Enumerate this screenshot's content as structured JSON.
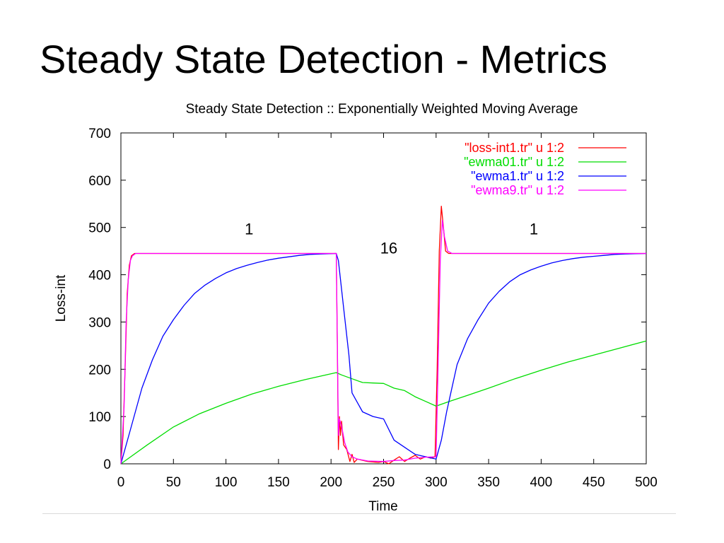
{
  "slide": {
    "title": "Steady State Detection - Metrics"
  },
  "chart_data": {
    "type": "line",
    "title": "Steady State Detection :: Exponentially Weighted Moving Average",
    "xlabel": "Time",
    "ylabel": "Loss-int",
    "xlim": [
      0,
      500
    ],
    "ylim": [
      0,
      700
    ],
    "xticks": [
      0,
      50,
      100,
      150,
      200,
      250,
      300,
      350,
      400,
      450,
      500
    ],
    "yticks": [
      0,
      100,
      200,
      300,
      400,
      500,
      600,
      700
    ],
    "grid": false,
    "legend_position": "top-right",
    "series": [
      {
        "name": "\"loss-int1.tr\" u 1:2",
        "color": "#ff0000",
        "points": [
          [
            0,
            0
          ],
          [
            2,
            60
          ],
          [
            4,
            200
          ],
          [
            6,
            360
          ],
          [
            8,
            420
          ],
          [
            10,
            440
          ],
          [
            13,
            445
          ],
          [
            205,
            445
          ],
          [
            206,
            250
          ],
          [
            207,
            30
          ],
          [
            208,
            100
          ],
          [
            209,
            60
          ],
          [
            210,
            90
          ],
          [
            212,
            40
          ],
          [
            215,
            30
          ],
          [
            218,
            5
          ],
          [
            220,
            20
          ],
          [
            222,
            3
          ],
          [
            225,
            10
          ],
          [
            235,
            5
          ],
          [
            245,
            3
          ],
          [
            250,
            5
          ],
          [
            255,
            0
          ],
          [
            260,
            8
          ],
          [
            265,
            15
          ],
          [
            270,
            5
          ],
          [
            275,
            12
          ],
          [
            280,
            18
          ],
          [
            285,
            10
          ],
          [
            290,
            15
          ],
          [
            295,
            12
          ],
          [
            299,
            15
          ],
          [
            301,
            200
          ],
          [
            303,
            450
          ],
          [
            305,
            545
          ],
          [
            307,
            500
          ],
          [
            309,
            450
          ],
          [
            312,
            445
          ],
          [
            500,
            445
          ]
        ]
      },
      {
        "name": "\"ewma01.tr\" u 1:2",
        "color": "#00dd00",
        "points": [
          [
            0,
            0
          ],
          [
            25,
            40
          ],
          [
            50,
            78
          ],
          [
            75,
            106
          ],
          [
            100,
            128
          ],
          [
            125,
            148
          ],
          [
            150,
            164
          ],
          [
            175,
            178
          ],
          [
            205,
            193
          ],
          [
            210,
            188
          ],
          [
            220,
            180
          ],
          [
            230,
            172
          ],
          [
            240,
            171
          ],
          [
            250,
            170
          ],
          [
            260,
            160
          ],
          [
            270,
            155
          ],
          [
            280,
            142
          ],
          [
            290,
            132
          ],
          [
            300,
            122
          ],
          [
            310,
            130
          ],
          [
            330,
            145
          ],
          [
            350,
            160
          ],
          [
            375,
            180
          ],
          [
            400,
            198
          ],
          [
            425,
            215
          ],
          [
            450,
            230
          ],
          [
            475,
            245
          ],
          [
            500,
            260
          ]
        ]
      },
      {
        "name": "\"ewma1.tr\" u 1:2",
        "color": "#0000ff",
        "points": [
          [
            0,
            0
          ],
          [
            10,
            80
          ],
          [
            20,
            160
          ],
          [
            30,
            220
          ],
          [
            40,
            270
          ],
          [
            50,
            305
          ],
          [
            60,
            335
          ],
          [
            70,
            360
          ],
          [
            80,
            378
          ],
          [
            90,
            392
          ],
          [
            100,
            404
          ],
          [
            110,
            413
          ],
          [
            120,
            420
          ],
          [
            130,
            426
          ],
          [
            140,
            431
          ],
          [
            150,
            435
          ],
          [
            160,
            438
          ],
          [
            170,
            441
          ],
          [
            180,
            443
          ],
          [
            190,
            444
          ],
          [
            205,
            445
          ],
          [
            207,
            430
          ],
          [
            212,
            330
          ],
          [
            217,
            230
          ],
          [
            220,
            150
          ],
          [
            230,
            110
          ],
          [
            240,
            100
          ],
          [
            250,
            95
          ],
          [
            260,
            50
          ],
          [
            270,
            35
          ],
          [
            280,
            20
          ],
          [
            290,
            15
          ],
          [
            300,
            10
          ],
          [
            305,
            50
          ],
          [
            310,
            110
          ],
          [
            315,
            160
          ],
          [
            320,
            210
          ],
          [
            330,
            265
          ],
          [
            340,
            305
          ],
          [
            350,
            340
          ],
          [
            360,
            365
          ],
          [
            370,
            385
          ],
          [
            380,
            400
          ],
          [
            390,
            410
          ],
          [
            400,
            418
          ],
          [
            410,
            425
          ],
          [
            420,
            430
          ],
          [
            430,
            434
          ],
          [
            440,
            437
          ],
          [
            450,
            439
          ],
          [
            460,
            441
          ],
          [
            470,
            443
          ],
          [
            480,
            444
          ],
          [
            500,
            445
          ]
        ]
      },
      {
        "name": "\"ewma9.tr\" u 1:2",
        "color": "#ff00ff",
        "points": [
          [
            0,
            0
          ],
          [
            3,
            120
          ],
          [
            5,
            300
          ],
          [
            7,
            390
          ],
          [
            9,
            430
          ],
          [
            11,
            440
          ],
          [
            14,
            445
          ],
          [
            205,
            445
          ],
          [
            206,
            260
          ],
          [
            207,
            60
          ],
          [
            208,
            95
          ],
          [
            210,
            80
          ],
          [
            213,
            45
          ],
          [
            216,
            25
          ],
          [
            220,
            15
          ],
          [
            225,
            10
          ],
          [
            235,
            6
          ],
          [
            250,
            5
          ],
          [
            260,
            7
          ],
          [
            270,
            8
          ],
          [
            280,
            12
          ],
          [
            290,
            14
          ],
          [
            300,
            15
          ],
          [
            302,
            220
          ],
          [
            304,
            430
          ],
          [
            306,
            515
          ],
          [
            308,
            480
          ],
          [
            311,
            450
          ],
          [
            315,
            445
          ],
          [
            500,
            445
          ]
        ]
      }
    ],
    "annotations": [
      {
        "text": "1",
        "x": 122,
        "y": 485
      },
      {
        "text": "16",
        "x": 255,
        "y": 445
      },
      {
        "text": "1",
        "x": 393,
        "y": 485
      }
    ]
  }
}
